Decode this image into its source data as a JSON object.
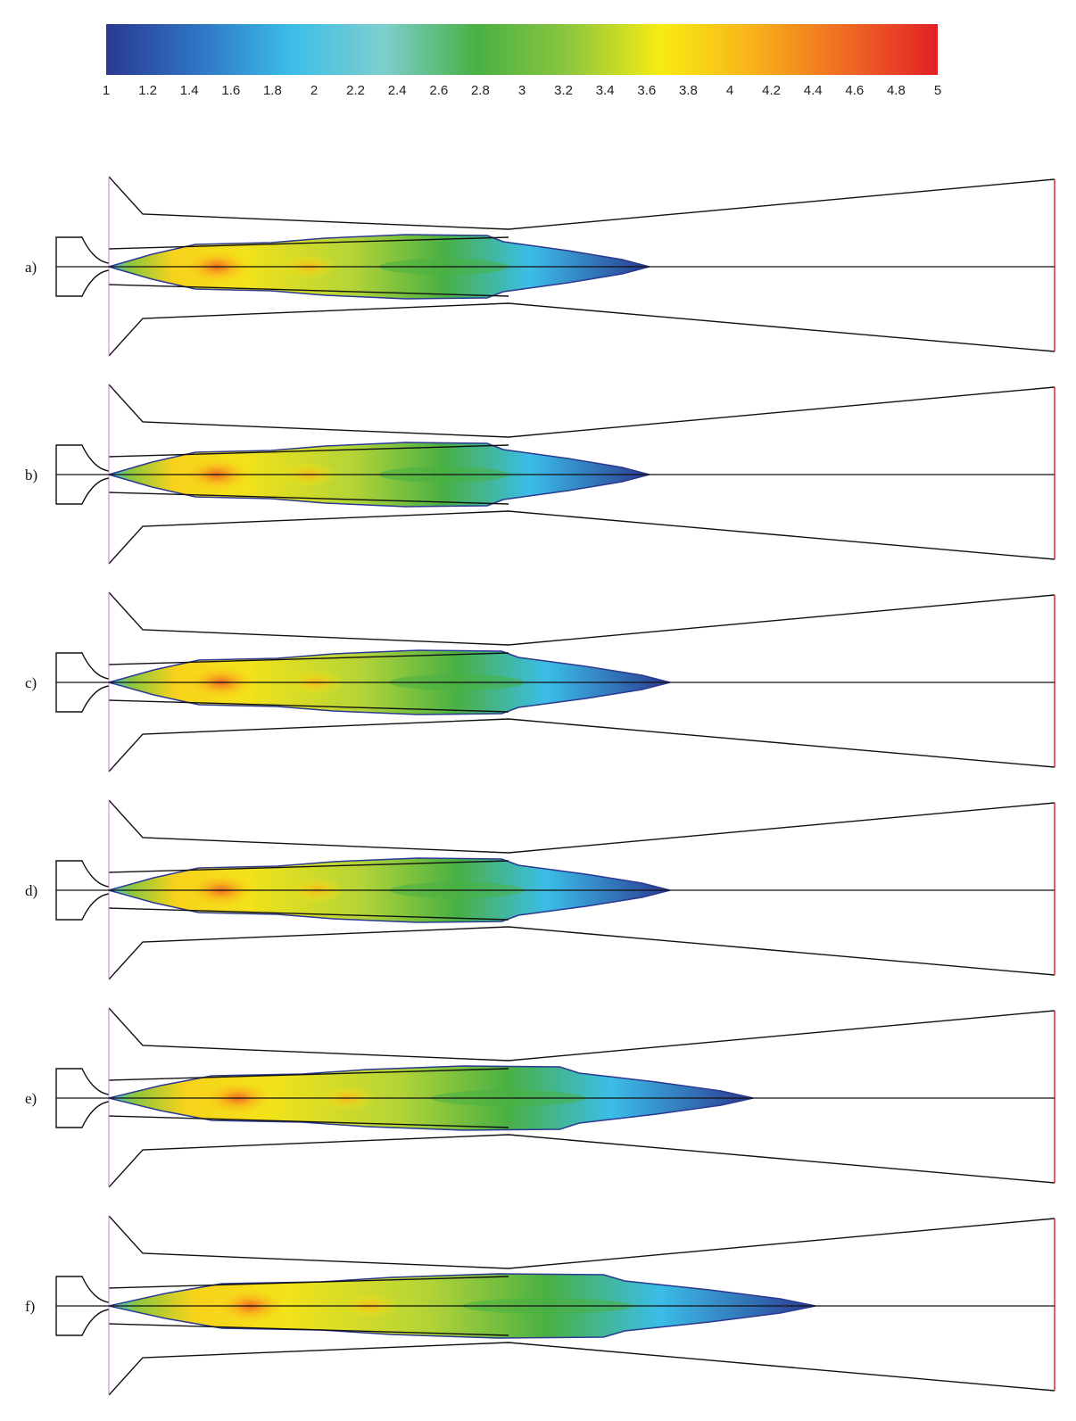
{
  "colorbar": {
    "min": 1,
    "max": 5,
    "tick_labels": [
      "1",
      "1.2",
      "1.4",
      "1.6",
      "1.8",
      "2",
      "2.2",
      "2.4",
      "2.6",
      "2.8",
      "3",
      "3.2",
      "3.4",
      "3.6",
      "3.8",
      "4",
      "4.2",
      "4.4",
      "4.6",
      "4.8",
      "5"
    ],
    "color_stops": [
      "#2b3990",
      "#2f74c4",
      "#3bbde8",
      "#7ecfcf",
      "#49b044",
      "#8cc63e",
      "#f7ec13",
      "#f8b21b",
      "#ef6a23",
      "#e21f26"
    ]
  },
  "panels": [
    {
      "label": "a)",
      "plume_end": 2.6,
      "max_level": 4.4
    },
    {
      "label": "b)",
      "plume_end": 2.6,
      "max_level": 4.6
    },
    {
      "label": "c)",
      "plume_end": 2.7,
      "max_level": 4.3
    },
    {
      "label": "d)",
      "plume_end": 2.7,
      "max_level": 4.6
    },
    {
      "label": "e)",
      "plume_end": 3.1,
      "max_level": 4.5
    },
    {
      "label": "f)",
      "plume_end": 3.4,
      "max_level": 4.2
    }
  ]
}
